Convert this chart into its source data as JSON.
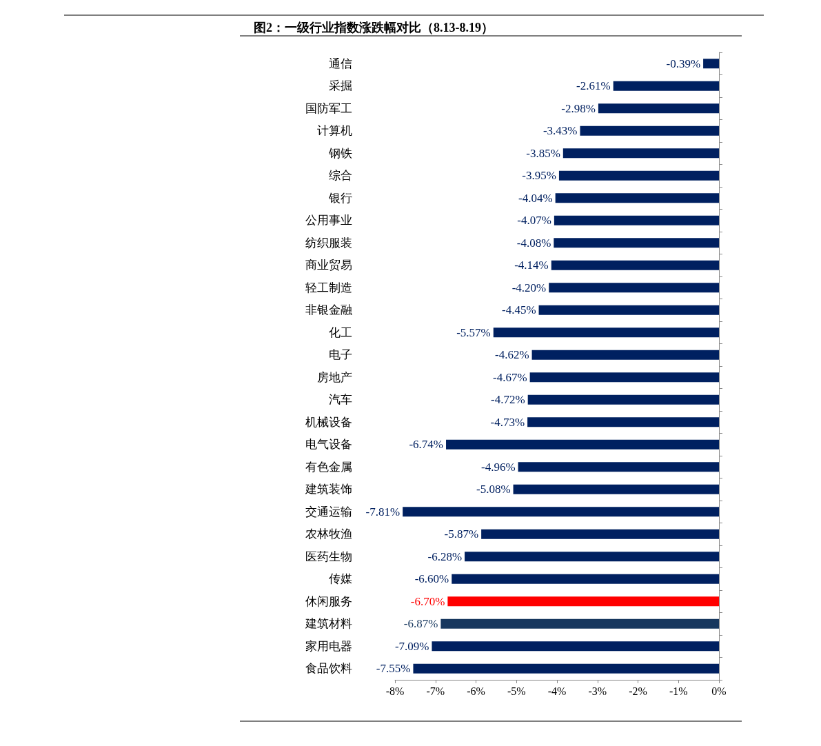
{
  "chart_data": {
    "type": "bar",
    "orientation": "horizontal",
    "title": "图2：一级行业指数涨跌幅对比（8.13-8.19）",
    "categories": [
      "通信",
      "采掘",
      "国防军工",
      "计算机",
      "钢铁",
      "综合",
      "银行",
      "公用事业",
      "纺织服装",
      "商业贸易",
      "轻工制造",
      "非银金融",
      "化工",
      "电子",
      "房地产",
      "汽车",
      "机械设备",
      "电气设备",
      "有色金属",
      "建筑装饰",
      "交通运输",
      "农林牧渔",
      "医药生物",
      "传媒",
      "休闲服务",
      "建筑材料",
      "家用电器",
      "食品饮料"
    ],
    "values": [
      -0.39,
      -2.61,
      -2.98,
      -3.43,
      -3.85,
      -3.95,
      -4.04,
      -4.07,
      -4.08,
      -4.14,
      -4.2,
      -4.45,
      -5.57,
      -4.62,
      -4.67,
      -4.72,
      -4.73,
      -6.74,
      -4.96,
      -5.08,
      -7.81,
      -5.87,
      -6.28,
      -6.6,
      -6.7,
      -6.87,
      -7.09,
      -7.55
    ],
    "value_labels": [
      "-0.39%",
      "-2.61%",
      "-2.98%",
      "-3.43%",
      "-3.85%",
      "-3.95%",
      "-4.04%",
      "-4.07%",
      "-4.08%",
      "-4.14%",
      "-4.20%",
      "-4.45%",
      "-5.57%",
      "-4.62%",
      "-4.67%",
      "-4.72%",
      "-4.73%",
      "-6.74%",
      "-4.96%",
      "-5.08%",
      "-7.81%",
      "-5.87%",
      "-6.28%",
      "-6.60%",
      "-6.70%",
      "-6.87%",
      "-7.09%",
      "-7.55%"
    ],
    "colors": [
      "#002060",
      "#002060",
      "#002060",
      "#002060",
      "#002060",
      "#002060",
      "#002060",
      "#002060",
      "#002060",
      "#002060",
      "#002060",
      "#002060",
      "#002060",
      "#002060",
      "#002060",
      "#002060",
      "#002060",
      "#002060",
      "#002060",
      "#002060",
      "#002060",
      "#002060",
      "#002060",
      "#002060",
      "#ff0000",
      "#17375e",
      "#002060",
      "#002060"
    ],
    "xlim": [
      -8,
      0
    ],
    "xticks": [
      {
        "value": -8,
        "label": "-8%"
      },
      {
        "value": -7,
        "label": "-7%"
      },
      {
        "value": -6,
        "label": "-6%"
      },
      {
        "value": -5,
        "label": "-5%"
      },
      {
        "value": -4,
        "label": "-4%"
      },
      {
        "value": -3,
        "label": "-3%"
      },
      {
        "value": -2,
        "label": "-2%"
      },
      {
        "value": -1,
        "label": "-1%"
      },
      {
        "value": 0,
        "label": "0%"
      }
    ],
    "grid": false
  }
}
